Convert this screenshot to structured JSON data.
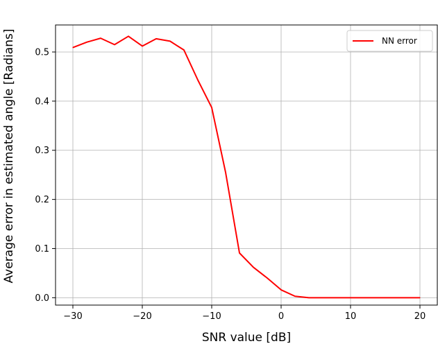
{
  "chart_data": {
    "type": "line",
    "xlabel": "SNR value [dB]",
    "ylabel": "Average error in estimated angle [Radians]",
    "xlim": [
      -32.5,
      22.5
    ],
    "ylim": [
      -0.015,
      0.555
    ],
    "xticks": [
      -30,
      -20,
      -10,
      0,
      10,
      20
    ],
    "yticks": [
      0.0,
      0.1,
      0.2,
      0.3,
      0.4,
      0.5
    ],
    "xtick_labels": [
      "−30",
      "−20",
      "−10",
      "0",
      "10",
      "20"
    ],
    "ytick_labels": [
      "0.0",
      "0.1",
      "0.2",
      "0.3",
      "0.4",
      "0.5"
    ],
    "grid": true,
    "legend_position": "top-right",
    "series": [
      {
        "name": "NN error",
        "color": "#ff0000",
        "x": [
          -30,
          -28,
          -26,
          -24,
          -22,
          -20,
          -18,
          -16,
          -14,
          -12,
          -10,
          -8,
          -6,
          -4,
          -2,
          0,
          2,
          4,
          6,
          8,
          10,
          12,
          14,
          16,
          18,
          20
        ],
        "y": [
          0.509,
          0.52,
          0.528,
          0.515,
          0.532,
          0.512,
          0.527,
          0.522,
          0.504,
          0.443,
          0.387,
          0.255,
          0.091,
          0.062,
          0.04,
          0.016,
          0.003,
          0.0,
          0.0,
          0.0,
          0.0,
          0.0,
          0.0,
          0.0,
          0.0,
          0.0
        ]
      }
    ]
  }
}
